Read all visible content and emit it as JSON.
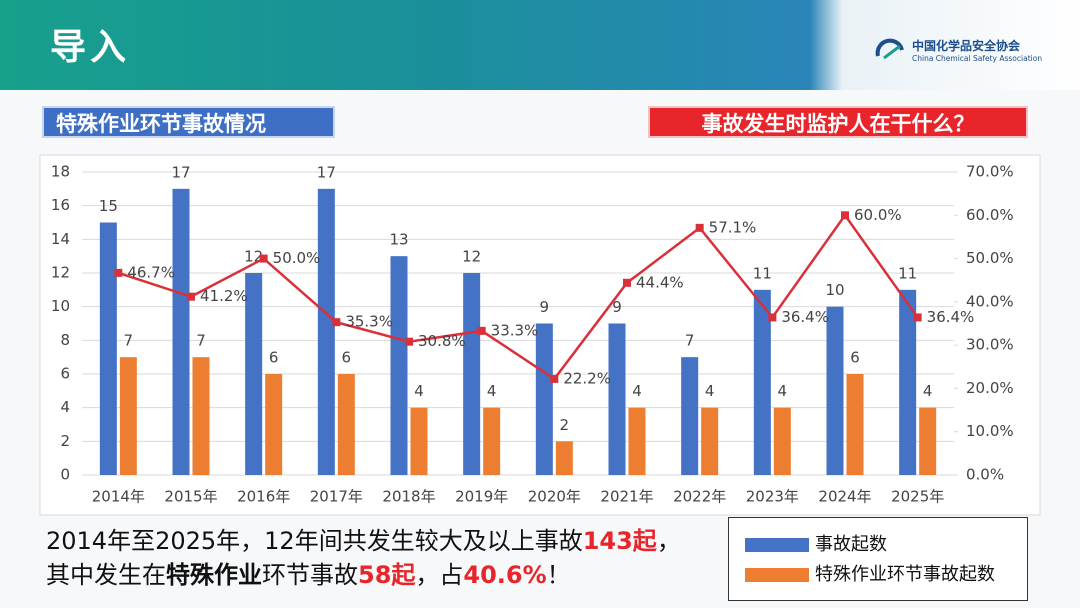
{
  "header": {
    "title": "导入",
    "logo_cn": "中国化学品安全协会",
    "logo_en": "China Chemical Safety Association"
  },
  "left_tag": "特殊作业环节事故情况",
  "right_tag": "事故发生时监护人在干什么？",
  "chart_data": {
    "type": "bar",
    "categories": [
      "2014年",
      "2015年",
      "2016年",
      "2017年",
      "2018年",
      "2019年",
      "2020年",
      "2021年",
      "2022年",
      "2023年",
      "2024年",
      "2025年"
    ],
    "series": [
      {
        "name": "事故起数",
        "color": "#4472c4",
        "values": [
          15,
          17,
          12,
          17,
          13,
          12,
          9,
          9,
          7,
          11,
          10,
          11
        ]
      },
      {
        "name": "特殊作业环节事故起数",
        "color": "#ed7d31",
        "values": [
          7,
          7,
          6,
          6,
          4,
          4,
          2,
          4,
          4,
          4,
          6,
          4
        ]
      },
      {
        "type": "line",
        "axis": "y2",
        "color": "#d9303a",
        "values": [
          46.7,
          41.2,
          50.0,
          35.3,
          30.8,
          33.3,
          22.2,
          44.4,
          57.1,
          36.4,
          60.0,
          36.4
        ],
        "value_labels": [
          "46.7%",
          "41.2%",
          "50.0%",
          "35.3%",
          "30.8%",
          "33.3%",
          "22.2%",
          "44.4%",
          "57.1%",
          "36.4%",
          "60.0%",
          "36.4%"
        ]
      }
    ],
    "ylim": [
      0,
      18
    ],
    "yticks": [
      0,
      2,
      4,
      6,
      8,
      10,
      12,
      14,
      16,
      18
    ],
    "y2lim": [
      0,
      70
    ],
    "y2ticks": [
      {
        "value": 0,
        "label": "0.0%"
      },
      {
        "value": 10,
        "label": "10.0%"
      },
      {
        "value": 20,
        "label": "20.0%"
      },
      {
        "value": 30,
        "label": "30.0%"
      },
      {
        "value": 40,
        "label": "40.0%"
      },
      {
        "value": 50,
        "label": "50.0%"
      },
      {
        "value": 60,
        "label": "60.0%"
      },
      {
        "value": 70,
        "label": "70.0%"
      }
    ],
    "grid": true
  },
  "summary": [
    [
      {
        "text": "2014年至2025年，12年间共发生较大及以上事故",
        "style": "plain"
      },
      {
        "text": "143起",
        "style": "red"
      },
      {
        "text": "，",
        "style": "plain"
      }
    ],
    [
      {
        "text": "其中发生在",
        "style": "plain"
      },
      {
        "text": "特殊作业",
        "style": "bold"
      },
      {
        "text": "环节事故",
        "style": "plain"
      },
      {
        "text": "58起",
        "style": "red"
      },
      {
        "text": "，占",
        "style": "plain"
      },
      {
        "text": "40.6%",
        "style": "red"
      },
      {
        "text": "！",
        "style": "plain"
      }
    ]
  ]
}
